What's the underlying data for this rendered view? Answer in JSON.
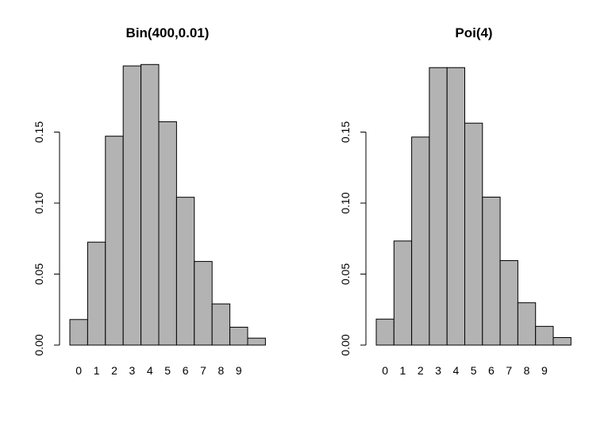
{
  "colors": {
    "bar_fill": "#b3b3b3",
    "bar_stroke": "#000000",
    "background": "#ffffff"
  },
  "chart_data": [
    {
      "type": "bar",
      "title": "Bin(400,0.01)",
      "xlabel": "",
      "ylabel": "",
      "categories": [
        "0",
        "1",
        "2",
        "3",
        "4",
        "5",
        "6",
        "7",
        "8",
        "9",
        "10"
      ],
      "category_labels": [
        "0",
        "1",
        "2",
        "3",
        "4",
        "5",
        "6",
        "7",
        "8",
        "9"
      ],
      "values": [
        0.018,
        0.0725,
        0.1471,
        0.1966,
        0.1976,
        0.1573,
        0.1041,
        0.0589,
        0.029,
        0.0126,
        0.0049
      ],
      "yticks": [
        "0.00",
        "0.05",
        "0.10",
        "0.15"
      ],
      "ylim": [
        0,
        0.2
      ],
      "grid": false,
      "legend": "none"
    },
    {
      "type": "bar",
      "title": "Poi(4)",
      "xlabel": "",
      "ylabel": "",
      "categories": [
        "0",
        "1",
        "2",
        "3",
        "4",
        "5",
        "6",
        "7",
        "8",
        "9",
        "10"
      ],
      "category_labels": [
        "0",
        "1",
        "2",
        "3",
        "4",
        "5",
        "6",
        "7",
        "8",
        "9"
      ],
      "values": [
        0.0183,
        0.0733,
        0.1465,
        0.1954,
        0.1954,
        0.1563,
        0.1042,
        0.0595,
        0.0298,
        0.0132,
        0.0053
      ],
      "yticks": [
        "0.00",
        "0.05",
        "0.10",
        "0.15"
      ],
      "ylim": [
        0,
        0.2
      ],
      "grid": false,
      "legend": "none"
    }
  ]
}
